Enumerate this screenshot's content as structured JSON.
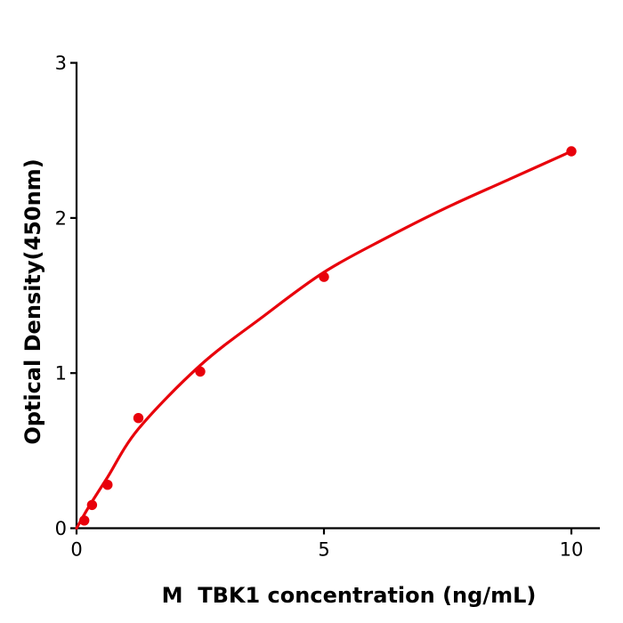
{
  "chart_data": {
    "type": "scatter",
    "title": "",
    "xlabel": "M  TBK1 concentration (ng/mL)",
    "ylabel": "Optical Density(450nm)",
    "x_axis": {
      "ticks": [
        0,
        5,
        10
      ],
      "range": [
        0,
        10.6
      ]
    },
    "y_axis": {
      "ticks": [
        0,
        1,
        2,
        3
      ],
      "range": [
        0,
        3
      ]
    },
    "grid": false,
    "legend": false,
    "colors": {
      "points": "#e8000b",
      "curve": "#e8000b",
      "axis": "#000000",
      "text": "#000000",
      "background": "#ffffff"
    },
    "points": [
      {
        "x": 0.156,
        "y": 0.05
      },
      {
        "x": 0.3125,
        "y": 0.15
      },
      {
        "x": 0.625,
        "y": 0.28
      },
      {
        "x": 1.25,
        "y": 0.71
      },
      {
        "x": 2.5,
        "y": 1.01
      },
      {
        "x": 5,
        "y": 1.62
      },
      {
        "x": 10,
        "y": 2.43
      }
    ],
    "fit_curve_samples": [
      [
        0,
        0
      ],
      [
        0.16,
        0.09
      ],
      [
        0.31,
        0.17
      ],
      [
        0.63,
        0.33
      ],
      [
        1.25,
        0.64
      ],
      [
        2.5,
        1.05
      ],
      [
        3.75,
        1.36
      ],
      [
        5,
        1.65
      ],
      [
        6.25,
        1.87
      ],
      [
        7.5,
        2.07
      ],
      [
        8.75,
        2.25
      ],
      [
        10,
        2.43
      ]
    ]
  }
}
